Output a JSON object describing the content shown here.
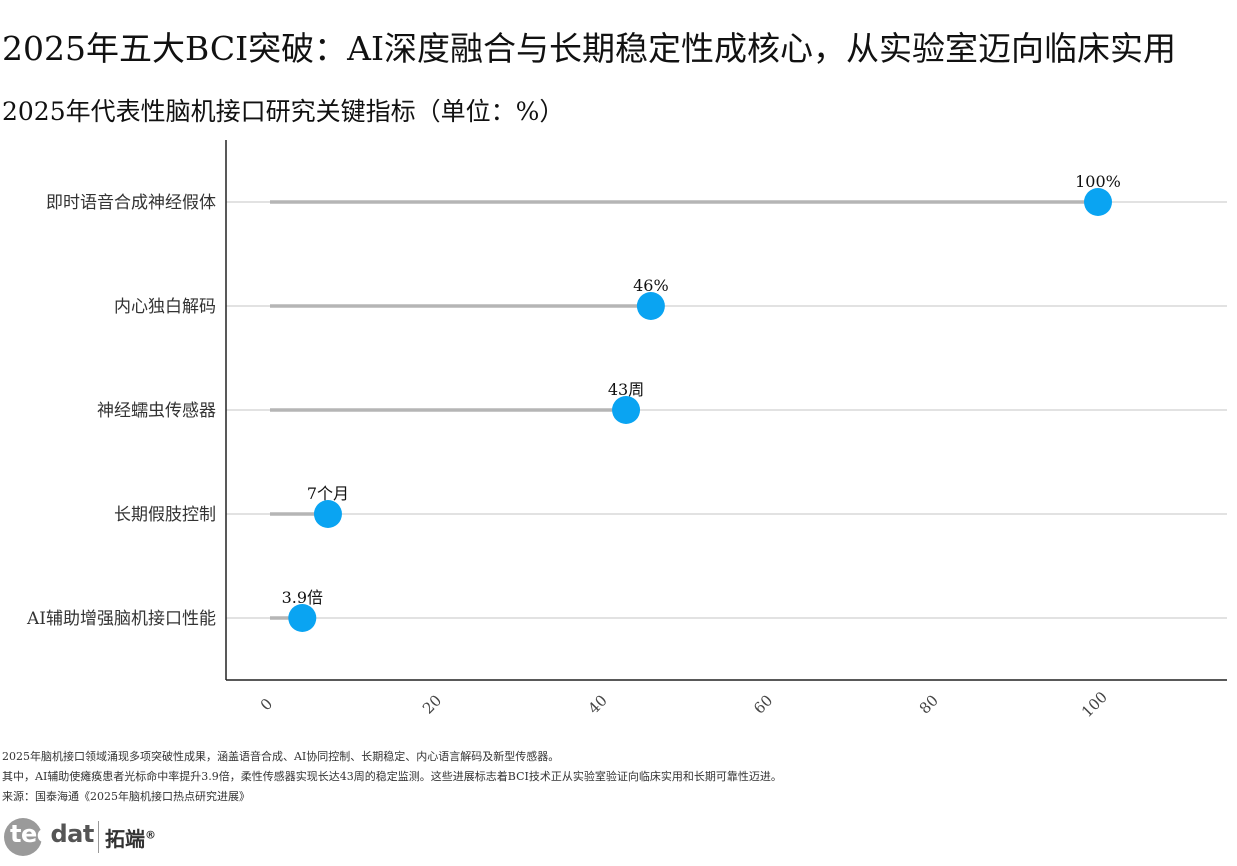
{
  "header": {
    "title": "2025年五大BCI突破：AI深度融合与长期稳定性成核心，从实验室迈向临床实用",
    "subtitle": "2025年代表性脑机接口研究关键指标（单位：%）"
  },
  "chart_data": {
    "type": "lollipop",
    "orientation": "horizontal",
    "categories": [
      "即时语音合成神经假体",
      "内心独白解码",
      "神经蠕虫传感器",
      "长期假肢控制",
      "AI辅助增强脑机接口性能"
    ],
    "values": [
      100,
      46,
      43,
      7,
      3.9
    ],
    "data_labels": [
      "100%",
      "46%",
      "43周",
      "7个月",
      "3.9倍"
    ],
    "x_ticks": [
      0,
      20,
      40,
      60,
      80,
      100
    ],
    "xlim": [
      -5,
      115
    ],
    "grid": "horizontal",
    "colors": {
      "point": "#0aa4f2",
      "stem": "#b5b5b5",
      "grid": "#d0d0d0",
      "axis": "#222222"
    }
  },
  "footer": {
    "notes": [
      "2025年脑机接口领域涌现多项突破性成果，涵盖语音合成、AI协同控制、长期稳定、内心语言解码及新型传感器。",
      "其中，AI辅助使瘫痪患者光标命中率提升3.9倍，柔性传感器实现长达43周的稳定监测。这些进展标志着BCI技术正从实验室验证向临床实用和长期可靠性迈进。",
      "来源：国泰海通《2025年脑机接口热点研究进展》"
    ]
  },
  "logo": {
    "text_light": "tec",
    "text_dark": "dat",
    "cn": "拓端",
    "mark": "®"
  }
}
